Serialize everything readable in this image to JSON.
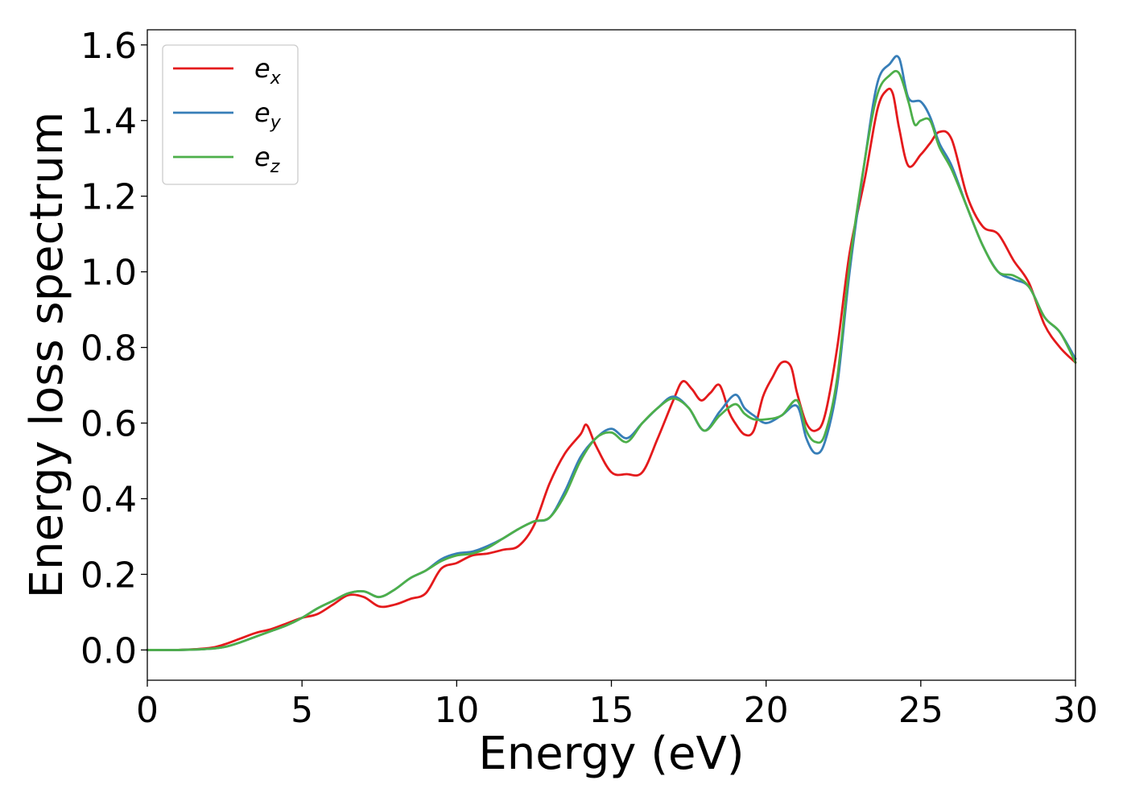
{
  "chart_data": {
    "type": "line",
    "xlabel": "Energy (eV)",
    "ylabel": "Energy loss spectrum",
    "xlim": [
      0,
      30
    ],
    "ylim": [
      -0.08,
      1.64
    ],
    "xticks": [
      0,
      5,
      10,
      15,
      20,
      25,
      30
    ],
    "yticks": [
      0.0,
      0.2,
      0.4,
      0.6,
      0.8,
      1.0,
      1.2,
      1.4,
      1.6
    ],
    "xtick_labels": [
      "0",
      "5",
      "10",
      "15",
      "20",
      "25",
      "30"
    ],
    "ytick_labels": [
      "0.0",
      "0.2",
      "0.4",
      "0.6",
      "0.8",
      "1.0",
      "1.2",
      "1.4",
      "1.6"
    ],
    "grid": false,
    "legend_position": "top-left",
    "series": [
      {
        "name_base": "e",
        "name_sub": "x",
        "color": "#e41a1c",
        "x": [
          0,
          1,
          2,
          2.5,
          3,
          3.5,
          4,
          4.5,
          5,
          5.5,
          6,
          6.5,
          7,
          7.5,
          8,
          8.5,
          9,
          9.5,
          10,
          10.5,
          11,
          11.5,
          12,
          12.5,
          13,
          13.5,
          14,
          14.2,
          14.5,
          15,
          15.5,
          16,
          16.5,
          17,
          17.3,
          17.6,
          17.9,
          18.2,
          18.5,
          18.8,
          19,
          19.3,
          19.6,
          19.9,
          20.2,
          20.5,
          20.8,
          21,
          21.3,
          21.6,
          21.9,
          22.3,
          22.7,
          23.2,
          23.6,
          23.9,
          24.1,
          24.3,
          24.6,
          25,
          25.3,
          25.6,
          26,
          26.5,
          27,
          27.5,
          28,
          28.5,
          29,
          29.5,
          30
        ],
        "y": [
          0.0,
          0.0,
          0.005,
          0.015,
          0.03,
          0.045,
          0.055,
          0.07,
          0.085,
          0.095,
          0.12,
          0.145,
          0.14,
          0.115,
          0.12,
          0.135,
          0.15,
          0.215,
          0.23,
          0.25,
          0.255,
          0.265,
          0.275,
          0.33,
          0.44,
          0.52,
          0.57,
          0.595,
          0.54,
          0.47,
          0.465,
          0.47,
          0.56,
          0.66,
          0.71,
          0.69,
          0.66,
          0.68,
          0.7,
          0.63,
          0.6,
          0.57,
          0.58,
          0.67,
          0.72,
          0.76,
          0.75,
          0.68,
          0.6,
          0.58,
          0.62,
          0.8,
          1.05,
          1.25,
          1.43,
          1.48,
          1.47,
          1.38,
          1.28,
          1.31,
          1.34,
          1.37,
          1.35,
          1.2,
          1.12,
          1.1,
          1.03,
          0.97,
          0.86,
          0.8,
          0.76
        ]
      },
      {
        "name_base": "e",
        "name_sub": "y",
        "color": "#377eb8",
        "x": [
          0,
          1,
          2,
          2.5,
          3,
          3.5,
          4,
          4.5,
          5,
          5.5,
          6,
          6.5,
          7,
          7.5,
          8,
          8.5,
          9,
          9.5,
          10,
          10.5,
          11,
          11.5,
          12,
          12.5,
          13,
          13.5,
          14,
          14.5,
          15,
          15.5,
          16,
          16.5,
          17,
          17.5,
          18,
          18.5,
          19,
          19.3,
          19.6,
          20,
          20.5,
          21,
          21.3,
          21.6,
          21.9,
          22.3,
          22.7,
          23.2,
          23.6,
          24,
          24.3,
          24.6,
          25,
          25.3,
          25.6,
          26,
          26.5,
          27,
          27.5,
          28,
          28.5,
          29,
          29.5,
          30
        ],
        "y": [
          0.0,
          0.0,
          0.003,
          0.008,
          0.02,
          0.035,
          0.05,
          0.065,
          0.085,
          0.11,
          0.13,
          0.15,
          0.155,
          0.14,
          0.16,
          0.19,
          0.21,
          0.24,
          0.255,
          0.26,
          0.275,
          0.295,
          0.32,
          0.34,
          0.35,
          0.42,
          0.51,
          0.56,
          0.585,
          0.56,
          0.6,
          0.64,
          0.67,
          0.64,
          0.58,
          0.63,
          0.675,
          0.64,
          0.62,
          0.6,
          0.62,
          0.645,
          0.56,
          0.52,
          0.55,
          0.7,
          1.0,
          1.3,
          1.5,
          1.55,
          1.565,
          1.46,
          1.45,
          1.41,
          1.34,
          1.28,
          1.17,
          1.07,
          1.0,
          0.98,
          0.96,
          0.88,
          0.84,
          0.77
        ]
      },
      {
        "name_base": "e",
        "name_sub": "z",
        "color": "#4daf4a",
        "x": [
          0,
          1,
          2,
          2.5,
          3,
          3.5,
          4,
          4.5,
          5,
          5.5,
          6,
          6.5,
          7,
          7.5,
          8,
          8.5,
          9,
          9.5,
          10,
          10.5,
          11,
          11.5,
          12,
          12.5,
          13,
          13.5,
          14,
          14.5,
          15,
          15.5,
          16,
          16.5,
          17,
          17.5,
          18,
          18.5,
          19,
          19.3,
          19.6,
          20,
          20.5,
          21,
          21.3,
          21.6,
          21.9,
          22.3,
          22.7,
          23.2,
          23.6,
          24,
          24.3,
          24.6,
          24.8,
          25,
          25.3,
          25.6,
          26,
          26.5,
          27,
          27.5,
          28,
          28.5,
          29,
          29.5,
          30
        ],
        "y": [
          0.0,
          0.0,
          0.003,
          0.008,
          0.02,
          0.035,
          0.05,
          0.065,
          0.085,
          0.11,
          0.13,
          0.15,
          0.155,
          0.14,
          0.16,
          0.19,
          0.21,
          0.235,
          0.25,
          0.255,
          0.27,
          0.295,
          0.32,
          0.34,
          0.35,
          0.41,
          0.5,
          0.56,
          0.575,
          0.55,
          0.6,
          0.64,
          0.665,
          0.64,
          0.58,
          0.62,
          0.65,
          0.625,
          0.61,
          0.61,
          0.62,
          0.66,
          0.58,
          0.55,
          0.57,
          0.72,
          1.02,
          1.3,
          1.47,
          1.52,
          1.525,
          1.45,
          1.39,
          1.4,
          1.4,
          1.33,
          1.27,
          1.17,
          1.07,
          1.0,
          0.99,
          0.96,
          0.88,
          0.84,
          0.76
        ]
      }
    ]
  }
}
